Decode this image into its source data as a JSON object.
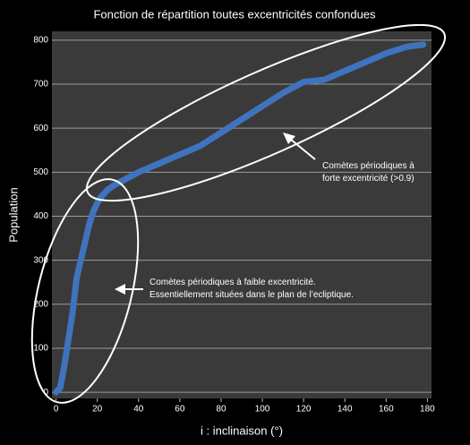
{
  "chart_data": {
    "type": "line",
    "title": "Fonction de répartition toutes excentricités confondues",
    "x_label": "i : inclinaison (°)",
    "y_label": "Population",
    "x": [
      0,
      2,
      4,
      6,
      8,
      10,
      12,
      14,
      16,
      18,
      20,
      22,
      25,
      28,
      32,
      36,
      40,
      50,
      60,
      70,
      80,
      90,
      100,
      110,
      120,
      130,
      140,
      150,
      160,
      170,
      178
    ],
    "series": [
      {
        "color": "#3f73bd",
        "values": [
          0,
          10,
          60,
          120,
          180,
          260,
          300,
          340,
          380,
          410,
          430,
          445,
          460,
          470,
          480,
          490,
          500,
          520,
          540,
          560,
          590,
          620,
          650,
          680,
          705,
          710,
          730,
          750,
          770,
          785,
          790
        ]
      }
    ],
    "xlim": [
      -2,
      182
    ],
    "xticks": [
      0,
      20,
      40,
      60,
      80,
      100,
      120,
      140,
      160,
      180
    ],
    "ylim": [
      -14,
      820
    ],
    "yticks": [
      0,
      100,
      200,
      300,
      400,
      500,
      600,
      700,
      800
    ],
    "grid": true,
    "annotations": [
      {
        "lines": [
          "Comètes périodiques à",
          "forte excentricité (>0.9)"
        ]
      },
      {
        "lines": [
          "Comètes périodiques à faible excentricité.",
          "Essentiellement situées dans le plan de l’ecliptique."
        ]
      }
    ]
  }
}
